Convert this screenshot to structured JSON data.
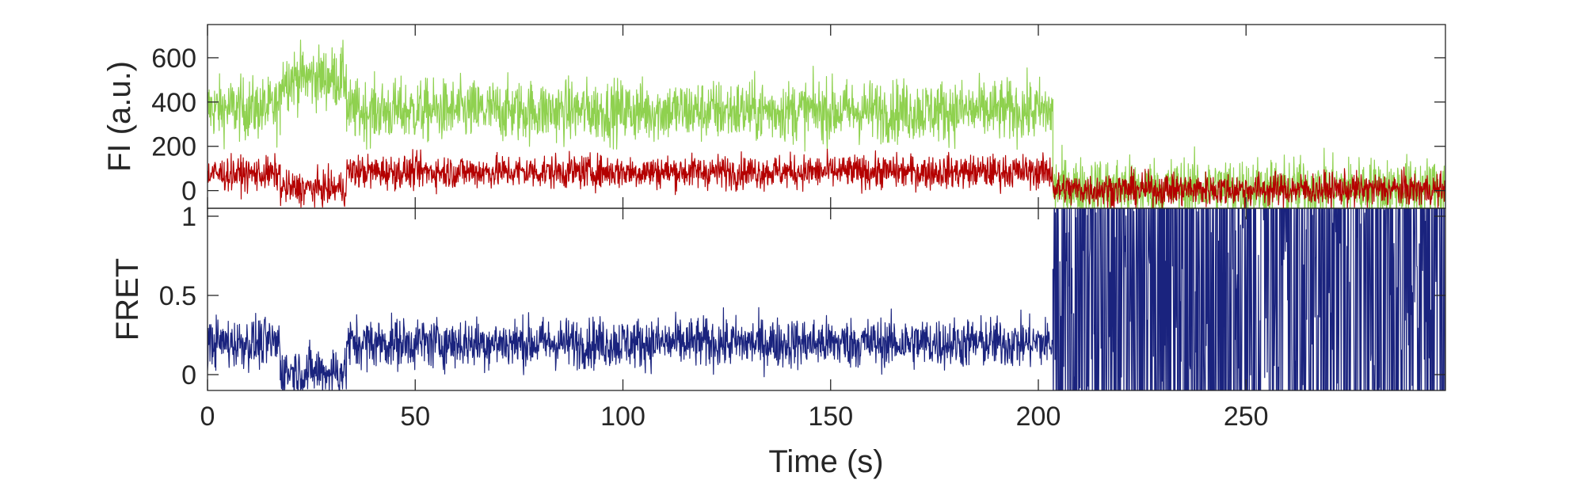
{
  "chart_data": [
    {
      "type": "line",
      "panel": "top",
      "ylabel": "FI (a.u.)",
      "xlim": [
        0,
        298
      ],
      "ylim": [
        -80,
        750
      ],
      "yticks": [
        0,
        200,
        400,
        600
      ],
      "ytick_labels": [
        "0",
        "200",
        "400",
        "600"
      ],
      "show_xtick_labels": false,
      "grid": false,
      "legend": false,
      "series": [
        {
          "color": "#8fd14f",
          "noise": 70,
          "segments": [
            {
              "x": [
                0,
                17.5
              ],
              "y": [
                370,
                370
              ]
            },
            {
              "x": [
                17.5,
                33.5
              ],
              "y": [
                510,
                510
              ]
            },
            {
              "x": [
                33.5,
                203.5
              ],
              "y": [
                360,
                360
              ]
            },
            {
              "x": [
                203.5,
                298
              ],
              "y": [
                10,
                10
              ]
            }
          ]
        },
        {
          "color": "#b40000",
          "noise": 38,
          "segments": [
            {
              "x": [
                0,
                17.5
              ],
              "y": [
                75,
                75
              ]
            },
            {
              "x": [
                17.5,
                33.5
              ],
              "y": [
                10,
                10
              ]
            },
            {
              "x": [
                33.5,
                203.5
              ],
              "y": [
                85,
                85
              ]
            },
            {
              "x": [
                203.5,
                298
              ],
              "y": [
                5,
                5
              ]
            }
          ]
        }
      ]
    },
    {
      "type": "line",
      "panel": "bottom",
      "ylabel": "FRET",
      "xlabel": "Time (s)",
      "xlim": [
        0,
        298
      ],
      "ylim": [
        -0.1,
        1.05
      ],
      "xticks": [
        0,
        50,
        100,
        150,
        200,
        250
      ],
      "xtick_labels": [
        "0",
        "50",
        "100",
        "150",
        "200",
        "250"
      ],
      "yticks": [
        0,
        0.5,
        1
      ],
      "ytick_labels": [
        "0",
        "0.5",
        "1"
      ],
      "grid": false,
      "legend": false,
      "series": [
        {
          "color": "#1a237e",
          "noise": 0.08,
          "segments": [
            {
              "x": [
                0,
                17.5
              ],
              "y": [
                0.2,
                0.2
              ]
            },
            {
              "x": [
                17.5,
                33.5
              ],
              "y": [
                0.02,
                0.02
              ]
            },
            {
              "x": [
                33.5,
                203.5
              ],
              "y": [
                0.2,
                0.2
              ]
            },
            {
              "x": [
                203.5,
                298
              ],
              "y": [
                0.5,
                0.5
              ],
              "saturated": true
            }
          ]
        }
      ]
    }
  ]
}
